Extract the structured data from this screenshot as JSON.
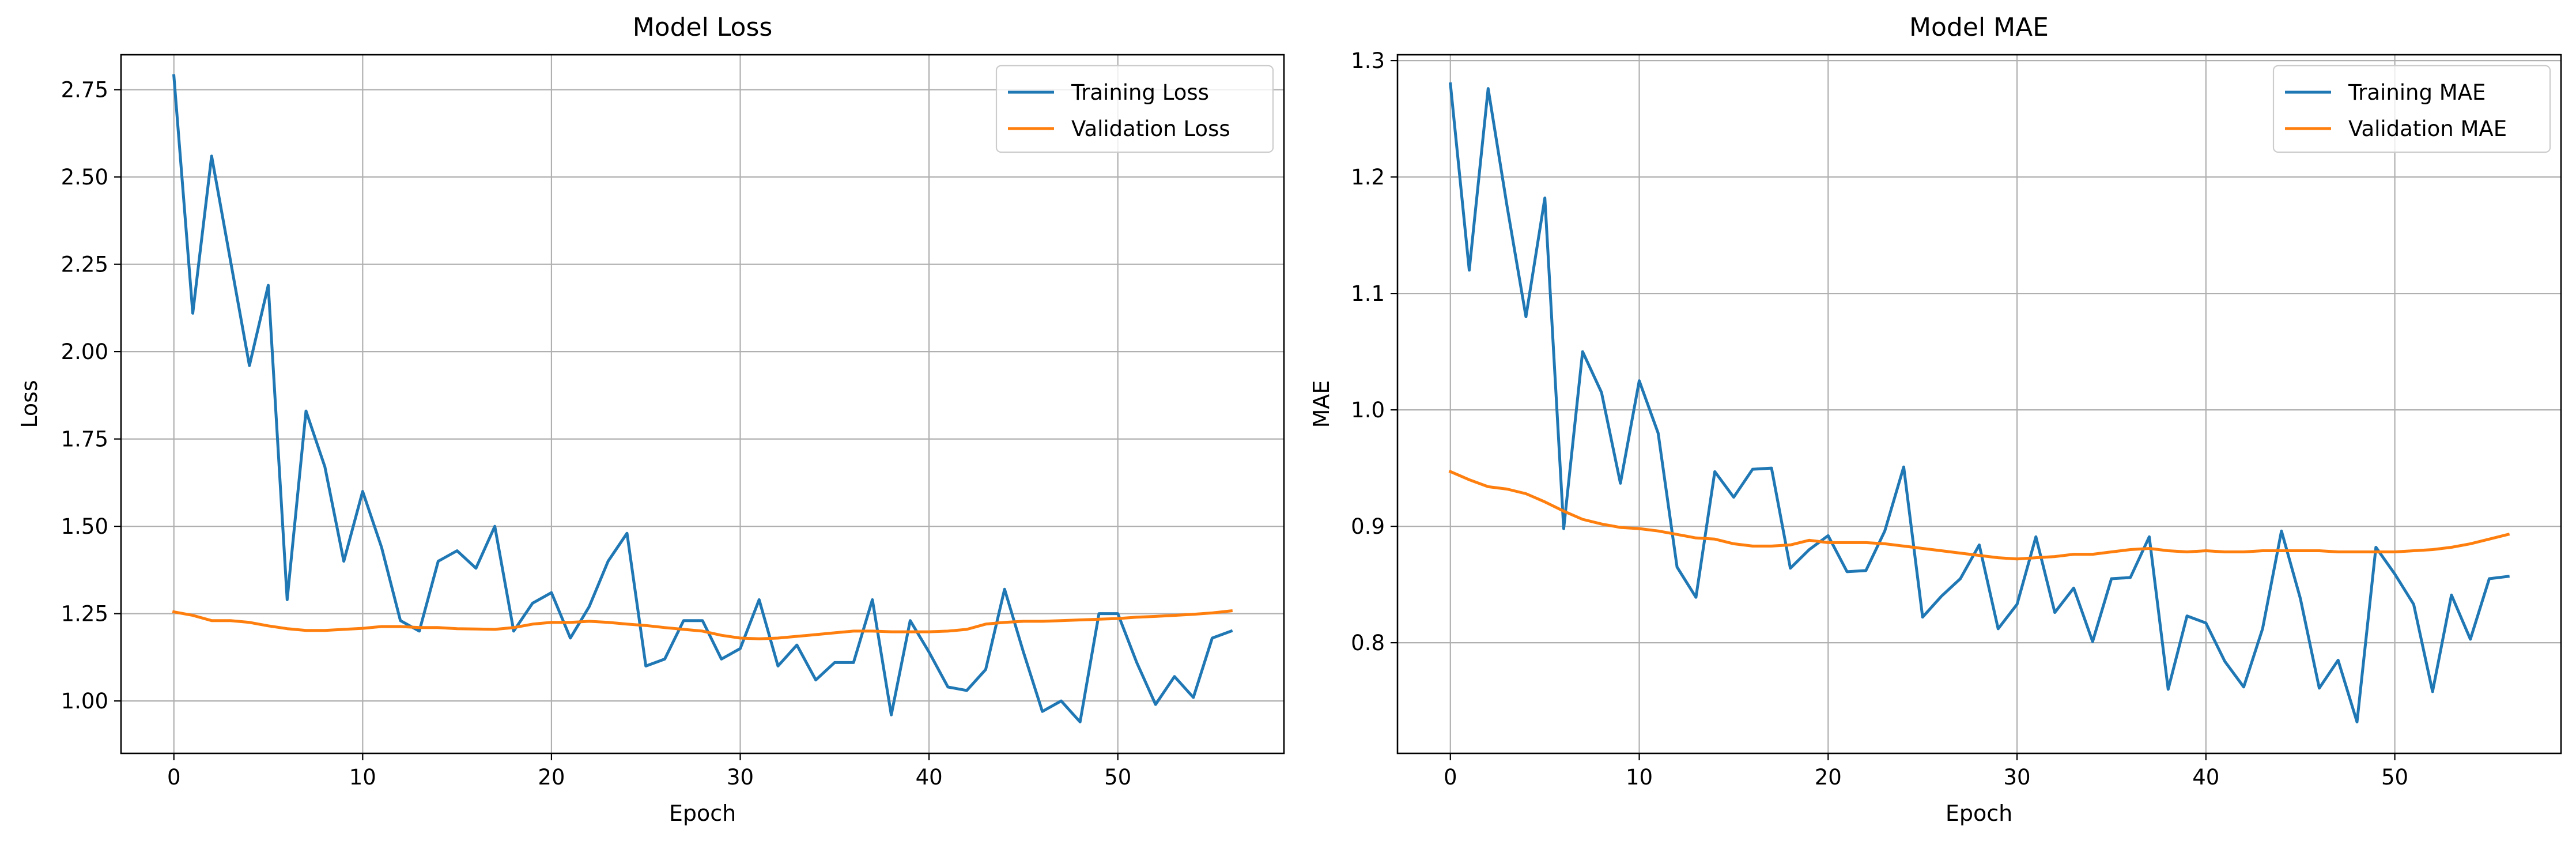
{
  "chart_data": [
    {
      "type": "line",
      "title": "Model Loss",
      "xlabel": "Epoch",
      "ylabel": "Loss",
      "xlim": [
        -2.8,
        58.8
      ],
      "ylim": [
        0.85,
        2.85
      ],
      "xticks": [
        0,
        10,
        20,
        30,
        40,
        50
      ],
      "xtick_labels": [
        "0",
        "10",
        "20",
        "30",
        "40",
        "50"
      ],
      "yticks": [
        1.0,
        1.25,
        1.5,
        1.75,
        2.0,
        2.25,
        2.5,
        2.75
      ],
      "ytick_labels": [
        "1.00",
        "1.25",
        "1.50",
        "1.75",
        "2.00",
        "2.25",
        "2.50",
        "2.75"
      ],
      "grid": true,
      "legend_position": "top-right",
      "x": [
        0,
        1,
        2,
        3,
        4,
        5,
        6,
        7,
        8,
        9,
        10,
        11,
        12,
        13,
        14,
        15,
        16,
        17,
        18,
        19,
        20,
        21,
        22,
        23,
        24,
        25,
        26,
        27,
        28,
        29,
        30,
        31,
        32,
        33,
        34,
        35,
        36,
        37,
        38,
        39,
        40,
        41,
        42,
        43,
        44,
        45,
        46,
        47,
        48,
        49,
        50,
        51,
        52,
        53,
        54,
        55,
        56
      ],
      "series": [
        {
          "name": "Training Loss",
          "color": "#1f77b4",
          "values": [
            2.79,
            2.11,
            2.56,
            2.26,
            1.96,
            2.19,
            1.29,
            1.83,
            1.67,
            1.4,
            1.6,
            1.44,
            1.23,
            1.2,
            1.4,
            1.43,
            1.38,
            1.5,
            1.2,
            1.28,
            1.31,
            1.18,
            1.27,
            1.4,
            1.48,
            1.1,
            1.12,
            1.23,
            1.23,
            1.12,
            1.15,
            1.29,
            1.1,
            1.16,
            1.06,
            1.11,
            1.11,
            1.29,
            0.96,
            1.23,
            1.14,
            1.04,
            1.03,
            1.09,
            1.32,
            1.14,
            0.97,
            1.0,
            0.94,
            1.25,
            1.25,
            1.11,
            0.99,
            1.07,
            1.01,
            1.18,
            1.2
          ]
        },
        {
          "name": "Validation Loss",
          "color": "#ff7f0e",
          "values": [
            1.255,
            1.245,
            1.23,
            1.23,
            1.225,
            1.215,
            1.207,
            1.202,
            1.202,
            1.205,
            1.208,
            1.213,
            1.213,
            1.21,
            1.21,
            1.207,
            1.206,
            1.205,
            1.21,
            1.22,
            1.225,
            1.225,
            1.228,
            1.225,
            1.22,
            1.216,
            1.21,
            1.205,
            1.2,
            1.188,
            1.18,
            1.178,
            1.18,
            1.185,
            1.19,
            1.195,
            1.2,
            1.2,
            1.198,
            1.198,
            1.198,
            1.2,
            1.205,
            1.22,
            1.225,
            1.228,
            1.228,
            1.23,
            1.232,
            1.234,
            1.236,
            1.24,
            1.242,
            1.245,
            1.248,
            1.252,
            1.258
          ]
        }
      ]
    },
    {
      "type": "line",
      "title": "Model MAE",
      "xlabel": "Epoch",
      "ylabel": "MAE",
      "xlim": [
        -2.8,
        58.8
      ],
      "ylim": [
        0.705,
        1.305
      ],
      "xticks": [
        0,
        10,
        20,
        30,
        40,
        50
      ],
      "xtick_labels": [
        "0",
        "10",
        "20",
        "30",
        "40",
        "50"
      ],
      "yticks": [
        0.8,
        0.9,
        1.0,
        1.1,
        1.2,
        1.3
      ],
      "ytick_labels": [
        "0.8",
        "0.9",
        "1.0",
        "1.1",
        "1.2",
        "1.3"
      ],
      "grid": true,
      "legend_position": "top-right",
      "x": [
        0,
        1,
        2,
        3,
        4,
        5,
        6,
        7,
        8,
        9,
        10,
        11,
        12,
        13,
        14,
        15,
        16,
        17,
        18,
        19,
        20,
        21,
        22,
        23,
        24,
        25,
        26,
        27,
        28,
        29,
        30,
        31,
        32,
        33,
        34,
        35,
        36,
        37,
        38,
        39,
        40,
        41,
        42,
        43,
        44,
        45,
        46,
        47,
        48,
        49,
        50,
        51,
        52,
        53,
        54,
        55,
        56
      ],
      "series": [
        {
          "name": "Training MAE",
          "color": "#1f77b4",
          "values": [
            1.28,
            1.12,
            1.276,
            1.175,
            1.08,
            1.182,
            0.898,
            1.05,
            1.015,
            0.937,
            1.025,
            0.98,
            0.865,
            0.839,
            0.947,
            0.925,
            0.949,
            0.95,
            0.864,
            0.88,
            0.892,
            0.861,
            0.862,
            0.896,
            0.951,
            0.822,
            0.84,
            0.855,
            0.884,
            0.812,
            0.833,
            0.891,
            0.826,
            0.847,
            0.801,
            0.855,
            0.856,
            0.891,
            0.76,
            0.823,
            0.817,
            0.784,
            0.762,
            0.812,
            0.896,
            0.838,
            0.761,
            0.785,
            0.732,
            0.882,
            0.859,
            0.833,
            0.758,
            0.841,
            0.803,
            0.855,
            0.857
          ]
        },
        {
          "name": "Validation MAE",
          "color": "#ff7f0e",
          "values": [
            0.947,
            0.94,
            0.934,
            0.932,
            0.928,
            0.921,
            0.913,
            0.906,
            0.902,
            0.899,
            0.898,
            0.896,
            0.893,
            0.89,
            0.889,
            0.885,
            0.883,
            0.883,
            0.884,
            0.888,
            0.886,
            0.886,
            0.886,
            0.885,
            0.883,
            0.881,
            0.879,
            0.877,
            0.875,
            0.873,
            0.872,
            0.873,
            0.874,
            0.876,
            0.876,
            0.878,
            0.88,
            0.881,
            0.879,
            0.878,
            0.879,
            0.878,
            0.878,
            0.879,
            0.879,
            0.879,
            0.879,
            0.878,
            0.878,
            0.878,
            0.878,
            0.879,
            0.88,
            0.882,
            0.885,
            0.889,
            0.893
          ]
        }
      ]
    }
  ]
}
